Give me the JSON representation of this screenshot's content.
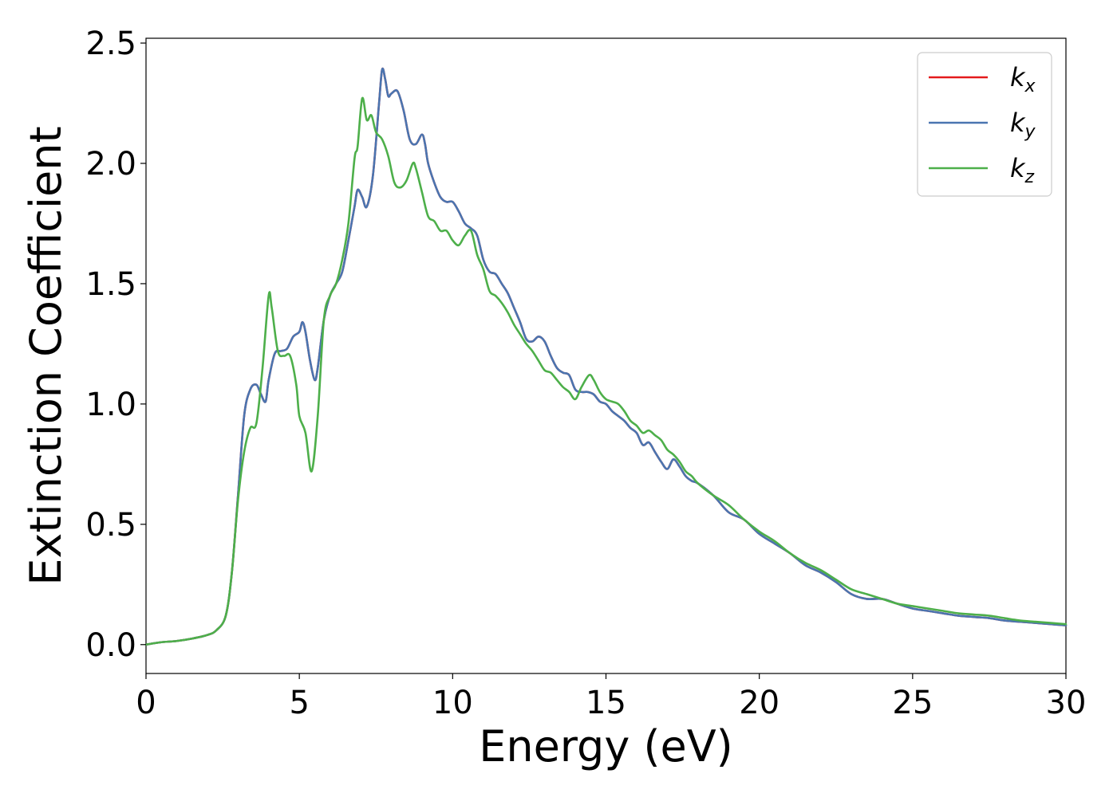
{
  "chart_data": {
    "type": "line",
    "title": "",
    "xlabel": "Energy (eV)",
    "ylabel": "Extinction Coefficient",
    "xlim": [
      0,
      30
    ],
    "ylim": [
      -0.12,
      2.52
    ],
    "xticks": [
      0,
      5,
      10,
      15,
      20,
      25,
      30
    ],
    "yticks": [
      0.0,
      0.5,
      1.0,
      1.5,
      2.0,
      2.5
    ],
    "xtick_labels": [
      "0",
      "5",
      "10",
      "15",
      "20",
      "25",
      "30"
    ],
    "ytick_labels": [
      "0.0",
      "0.5",
      "1.0",
      "1.5",
      "2.0",
      "2.5"
    ],
    "grid": false,
    "legend_position": "top-right",
    "series": [
      {
        "name": "kx",
        "label_main": "k",
        "label_sub": "x",
        "color": "#e41a1c",
        "x": [
          0,
          0.5,
          1,
          1.5,
          2,
          2.3,
          2.6,
          2.8,
          3.0,
          3.2,
          3.4,
          3.6,
          3.75,
          3.9,
          4.0,
          4.2,
          4.4,
          4.6,
          4.8,
          5.0,
          5.1,
          5.2,
          5.35,
          5.5,
          5.6,
          5.8,
          6.0,
          6.2,
          6.4,
          6.6,
          6.8,
          6.9,
          7.05,
          7.2,
          7.4,
          7.6,
          7.7,
          7.8,
          7.9,
          8.0,
          8.2,
          8.4,
          8.6,
          8.8,
          9.0,
          9.1,
          9.2,
          9.4,
          9.6,
          9.8,
          10.0,
          10.2,
          10.4,
          10.6,
          10.8,
          11.0,
          11.2,
          11.4,
          11.6,
          11.8,
          12.0,
          12.2,
          12.4,
          12.6,
          12.8,
          13.0,
          13.2,
          13.4,
          13.6,
          13.8,
          14.0,
          14.2,
          14.4,
          14.6,
          14.8,
          15.0,
          15.2,
          15.4,
          15.6,
          15.8,
          16.0,
          16.2,
          16.4,
          16.6,
          16.8,
          17.0,
          17.2,
          17.4,
          17.6,
          17.8,
          18.0,
          18.5,
          19.0,
          19.5,
          20.0,
          20.5,
          21.0,
          21.5,
          22.0,
          22.5,
          23.0,
          23.5,
          24.0,
          24.5,
          25.0,
          25.5,
          26.0,
          26.5,
          27.0,
          27.5,
          28.0,
          28.5,
          29.0,
          29.5,
          30.0
        ],
        "y": [
          0,
          0.01,
          0.015,
          0.025,
          0.04,
          0.06,
          0.12,
          0.3,
          0.62,
          0.95,
          1.06,
          1.08,
          1.04,
          1.01,
          1.1,
          1.21,
          1.22,
          1.23,
          1.28,
          1.3,
          1.34,
          1.3,
          1.18,
          1.1,
          1.15,
          1.35,
          1.45,
          1.5,
          1.55,
          1.68,
          1.82,
          1.89,
          1.86,
          1.82,
          1.95,
          2.25,
          2.39,
          2.35,
          2.28,
          2.29,
          2.3,
          2.22,
          2.1,
          2.08,
          2.12,
          2.08,
          2.0,
          1.92,
          1.86,
          1.84,
          1.84,
          1.8,
          1.75,
          1.73,
          1.7,
          1.6,
          1.55,
          1.54,
          1.5,
          1.46,
          1.4,
          1.34,
          1.27,
          1.26,
          1.28,
          1.26,
          1.2,
          1.15,
          1.13,
          1.12,
          1.06,
          1.05,
          1.05,
          1.04,
          1.01,
          1.0,
          0.97,
          0.95,
          0.93,
          0.9,
          0.88,
          0.83,
          0.84,
          0.8,
          0.76,
          0.73,
          0.77,
          0.74,
          0.7,
          0.68,
          0.67,
          0.62,
          0.55,
          0.52,
          0.46,
          0.42,
          0.38,
          0.33,
          0.3,
          0.26,
          0.21,
          0.19,
          0.19,
          0.17,
          0.15,
          0.14,
          0.13,
          0.12,
          0.115,
          0.11,
          0.1,
          0.095,
          0.09,
          0.085,
          0.08
        ]
      },
      {
        "name": "ky",
        "label_main": "k",
        "label_sub": "y",
        "color": "#4a75b0",
        "x": [
          0,
          0.5,
          1,
          1.5,
          2,
          2.3,
          2.6,
          2.8,
          3.0,
          3.2,
          3.4,
          3.6,
          3.75,
          3.9,
          4.0,
          4.2,
          4.4,
          4.6,
          4.8,
          5.0,
          5.1,
          5.2,
          5.35,
          5.5,
          5.6,
          5.8,
          6.0,
          6.2,
          6.4,
          6.6,
          6.8,
          6.9,
          7.05,
          7.2,
          7.4,
          7.6,
          7.7,
          7.8,
          7.9,
          8.0,
          8.2,
          8.4,
          8.6,
          8.8,
          9.0,
          9.1,
          9.2,
          9.4,
          9.6,
          9.8,
          10.0,
          10.2,
          10.4,
          10.6,
          10.8,
          11.0,
          11.2,
          11.4,
          11.6,
          11.8,
          12.0,
          12.2,
          12.4,
          12.6,
          12.8,
          13.0,
          13.2,
          13.4,
          13.6,
          13.8,
          14.0,
          14.2,
          14.4,
          14.6,
          14.8,
          15.0,
          15.2,
          15.4,
          15.6,
          15.8,
          16.0,
          16.2,
          16.4,
          16.6,
          16.8,
          17.0,
          17.2,
          17.4,
          17.6,
          17.8,
          18.0,
          18.5,
          19.0,
          19.5,
          20.0,
          20.5,
          21.0,
          21.5,
          22.0,
          22.5,
          23.0,
          23.5,
          24.0,
          24.5,
          25.0,
          25.5,
          26.0,
          26.5,
          27.0,
          27.5,
          28.0,
          28.5,
          29.0,
          29.5,
          30.0
        ],
        "y": [
          0,
          0.01,
          0.015,
          0.025,
          0.04,
          0.06,
          0.12,
          0.3,
          0.62,
          0.95,
          1.06,
          1.08,
          1.04,
          1.01,
          1.1,
          1.21,
          1.22,
          1.23,
          1.28,
          1.3,
          1.34,
          1.3,
          1.18,
          1.1,
          1.15,
          1.35,
          1.45,
          1.5,
          1.55,
          1.68,
          1.82,
          1.89,
          1.86,
          1.82,
          1.95,
          2.25,
          2.39,
          2.35,
          2.28,
          2.29,
          2.3,
          2.22,
          2.1,
          2.08,
          2.12,
          2.08,
          2.0,
          1.92,
          1.86,
          1.84,
          1.84,
          1.8,
          1.75,
          1.73,
          1.7,
          1.6,
          1.55,
          1.54,
          1.5,
          1.46,
          1.4,
          1.34,
          1.27,
          1.26,
          1.28,
          1.26,
          1.2,
          1.15,
          1.13,
          1.12,
          1.06,
          1.05,
          1.05,
          1.04,
          1.01,
          1.0,
          0.97,
          0.95,
          0.93,
          0.9,
          0.88,
          0.83,
          0.84,
          0.8,
          0.76,
          0.73,
          0.77,
          0.74,
          0.7,
          0.68,
          0.67,
          0.62,
          0.55,
          0.52,
          0.46,
          0.42,
          0.38,
          0.33,
          0.3,
          0.26,
          0.21,
          0.19,
          0.19,
          0.17,
          0.15,
          0.14,
          0.13,
          0.12,
          0.115,
          0.11,
          0.1,
          0.095,
          0.09,
          0.085,
          0.08
        ]
      },
      {
        "name": "kz",
        "label_main": "k",
        "label_sub": "z",
        "color": "#4daf4a",
        "x": [
          0,
          0.5,
          1,
          1.5,
          2,
          2.3,
          2.6,
          2.8,
          3.0,
          3.2,
          3.4,
          3.6,
          3.8,
          4.0,
          4.1,
          4.3,
          4.5,
          4.7,
          4.9,
          5.0,
          5.2,
          5.4,
          5.6,
          5.8,
          6.0,
          6.2,
          6.4,
          6.6,
          6.8,
          6.9,
          7.05,
          7.2,
          7.35,
          7.5,
          7.7,
          7.9,
          8.1,
          8.3,
          8.5,
          8.7,
          8.8,
          9.0,
          9.2,
          9.4,
          9.6,
          9.8,
          10.0,
          10.2,
          10.4,
          10.6,
          10.8,
          11.0,
          11.2,
          11.4,
          11.6,
          11.8,
          12.0,
          12.2,
          12.4,
          12.6,
          12.8,
          13.0,
          13.2,
          13.4,
          13.6,
          13.8,
          14.0,
          14.2,
          14.45,
          14.6,
          14.8,
          15.0,
          15.2,
          15.4,
          15.6,
          15.8,
          16.0,
          16.2,
          16.4,
          16.6,
          16.8,
          17.0,
          17.2,
          17.4,
          17.6,
          17.8,
          18.0,
          18.5,
          19.0,
          19.5,
          20.0,
          20.5,
          21.0,
          21.5,
          22.0,
          22.5,
          23.0,
          23.5,
          24.0,
          24.5,
          25.0,
          25.5,
          26.0,
          26.5,
          27.0,
          27.5,
          28.0,
          28.5,
          29.0,
          29.5,
          30.0
        ],
        "y": [
          0,
          0.01,
          0.015,
          0.025,
          0.04,
          0.06,
          0.12,
          0.3,
          0.6,
          0.8,
          0.9,
          0.92,
          1.15,
          1.45,
          1.4,
          1.22,
          1.2,
          1.2,
          1.08,
          0.95,
          0.88,
          0.72,
          0.95,
          1.35,
          1.45,
          1.5,
          1.6,
          1.75,
          2.02,
          2.07,
          2.27,
          2.18,
          2.2,
          2.13,
          2.1,
          2.03,
          1.92,
          1.9,
          1.93,
          2.0,
          1.98,
          1.88,
          1.78,
          1.76,
          1.72,
          1.72,
          1.68,
          1.66,
          1.7,
          1.72,
          1.62,
          1.56,
          1.47,
          1.45,
          1.42,
          1.38,
          1.33,
          1.29,
          1.25,
          1.22,
          1.18,
          1.14,
          1.13,
          1.1,
          1.07,
          1.05,
          1.02,
          1.07,
          1.12,
          1.1,
          1.05,
          1.02,
          1.01,
          1.0,
          0.97,
          0.93,
          0.91,
          0.88,
          0.89,
          0.87,
          0.85,
          0.81,
          0.79,
          0.76,
          0.72,
          0.7,
          0.67,
          0.62,
          0.58,
          0.52,
          0.47,
          0.43,
          0.38,
          0.34,
          0.31,
          0.27,
          0.23,
          0.21,
          0.19,
          0.17,
          0.16,
          0.15,
          0.14,
          0.13,
          0.125,
          0.12,
          0.11,
          0.1,
          0.095,
          0.09,
          0.085
        ]
      }
    ]
  }
}
